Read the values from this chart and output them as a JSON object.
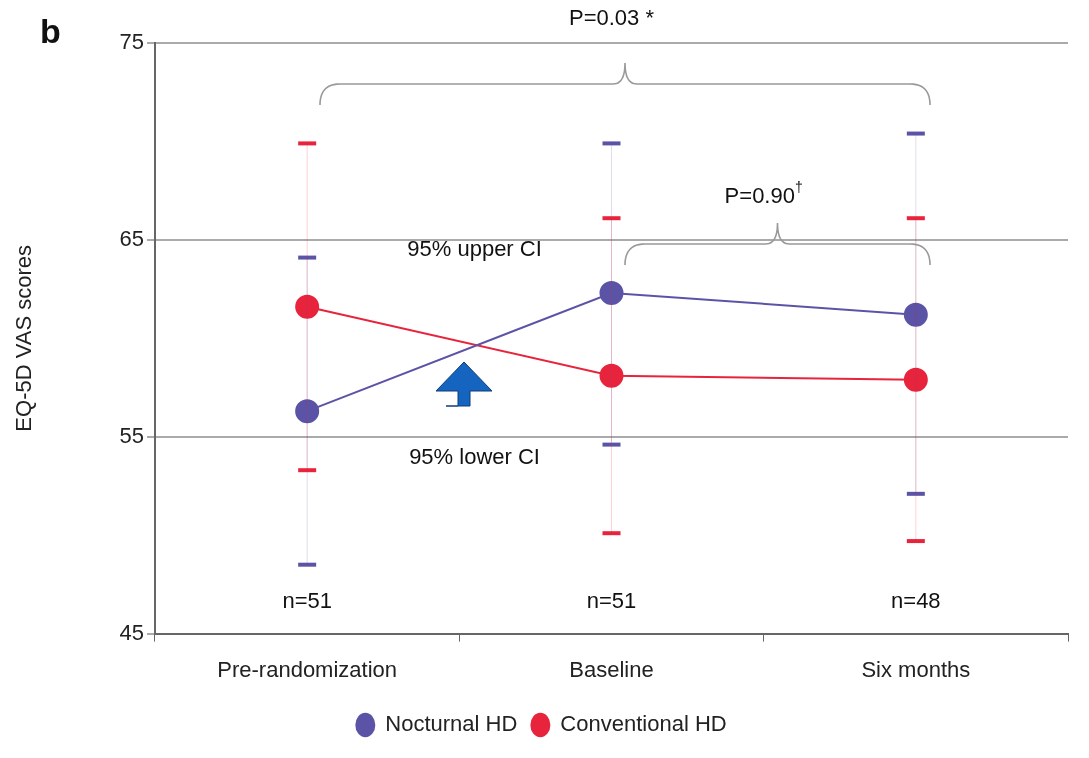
{
  "chart_data": {
    "type": "line",
    "categories": [
      "Pre-randomization",
      "Baseline",
      "Six months"
    ],
    "ylabel": "EQ-5D VAS scores",
    "ylim": [
      45,
      75
    ],
    "yticks": [
      45,
      55,
      65,
      75
    ],
    "grid": "y",
    "legend": "bottom",
    "marker": "circle",
    "line_style": "solid",
    "series": [
      {
        "name": "Nocturnal HD",
        "color": "#5b54a6",
        "values": [
          56.3,
          62.3,
          61.2
        ],
        "errors": [
          [
            48.5,
            64.1
          ],
          [
            54.6,
            69.9
          ],
          [
            52.1,
            70.4
          ]
        ]
      },
      {
        "name": "Conventional HD",
        "color": "#e8243c",
        "values": [
          61.6,
          58.1,
          57.9
        ],
        "errors": [
          [
            53.3,
            69.9
          ],
          [
            50.1,
            66.1
          ],
          [
            49.7,
            66.1
          ]
        ]
      }
    ],
    "annotations": [
      "b",
      "P=0.03 *",
      "P=0.90$^{†}$",
      "95% upper CI",
      "95% lower CI",
      "n=51",
      "n=51",
      "n=48"
    ]
  }
}
